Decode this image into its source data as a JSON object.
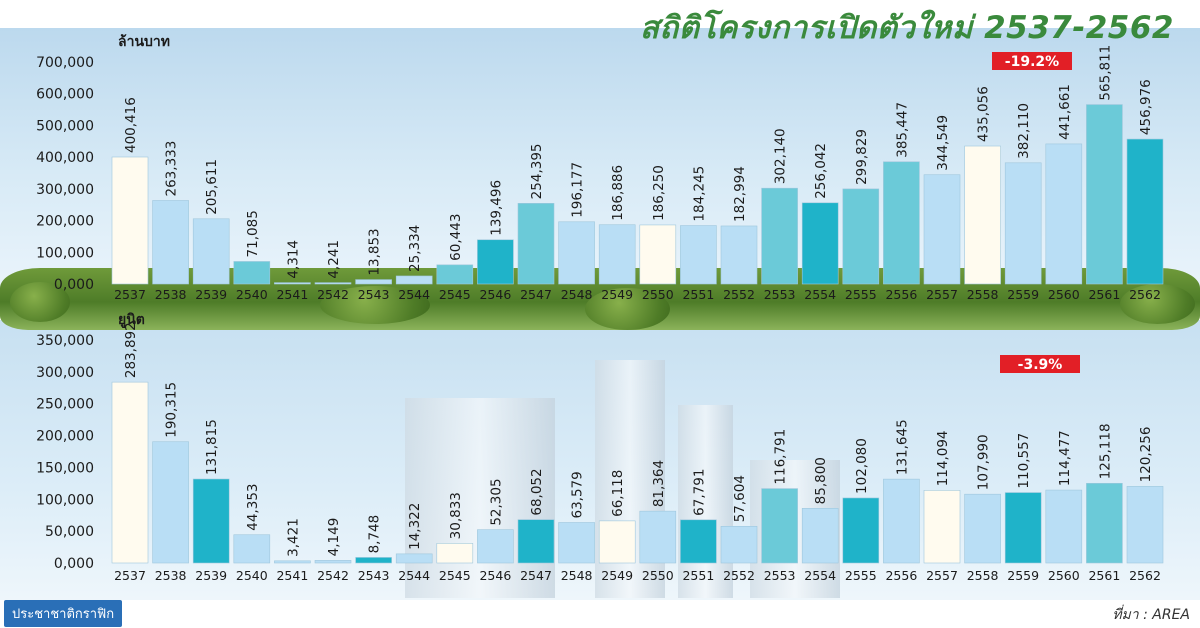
{
  "title": "สถิติโครงการเปิดตัวใหม่ 2537-2562",
  "footer": {
    "left": "ประชาชาติกราฟิก",
    "right": "ที่มา : AREA"
  },
  "colors": {
    "title": "#3a8a3c",
    "badge": "#e21f26",
    "cream": "#fffbef",
    "light_blue": "#b9def5",
    "teal": "#1fb3c9",
    "mid_teal": "#6bcad8"
  },
  "chart_data": [
    {
      "type": "bar",
      "ylabel": "ล้านบาท",
      "ylim": [
        0,
        700000
      ],
      "yticks": [
        "0,000",
        "100,000",
        "200,000",
        "300,000",
        "400,000",
        "500,000",
        "600,000",
        "700,000"
      ],
      "badge": "-19.2%",
      "categories": [
        "2537",
        "2538",
        "2539",
        "2540",
        "2541",
        "2542",
        "2543",
        "2544",
        "2545",
        "2546",
        "2547",
        "2548",
        "2549",
        "2550",
        "2551",
        "2552",
        "2553",
        "2554",
        "2555",
        "2556",
        "2557",
        "2558",
        "2559",
        "2560",
        "2561",
        "2562"
      ],
      "values": [
        400416,
        263333,
        205611,
        71085,
        4314,
        4241,
        13853,
        25334,
        60443,
        139496,
        254395,
        196177,
        186886,
        186250,
        184245,
        182994,
        302140,
        256042,
        299829,
        385447,
        344549,
        435056,
        382110,
        441661,
        565811,
        456976
      ],
      "value_labels": [
        "400,416",
        "263,333",
        "205,611",
        "71,085",
        "4,314",
        "4,241",
        "13,853",
        "25,334",
        "60,443",
        "139,496",
        "254,395",
        "196,177",
        "186,886",
        "186,250",
        "184,245",
        "182,994",
        "302,140",
        "256,042",
        "299,829",
        "385,447",
        "344,549",
        "435,056",
        "382,110",
        "441,661",
        "565,811",
        "456,976"
      ],
      "bar_colors": [
        "#fffbef",
        "#b9def5",
        "#b9def5",
        "#6bcad8",
        "#b9def5",
        "#b9def5",
        "#b9def5",
        "#b9def5",
        "#6bcad8",
        "#1fb3c9",
        "#6bcad8",
        "#b9def5",
        "#b9def5",
        "#fffbef",
        "#b9def5",
        "#b9def5",
        "#6bcad8",
        "#1fb3c9",
        "#6bcad8",
        "#6bcad8",
        "#b9def5",
        "#fffbef",
        "#b9def5",
        "#b9def5",
        "#6bcad8",
        "#1fb3c9"
      ]
    },
    {
      "type": "bar",
      "ylabel": "ยูนิต",
      "ylim": [
        0,
        350000
      ],
      "yticks": [
        "0,000",
        "50,000",
        "100,000",
        "150,000",
        "200,000",
        "250,000",
        "300,000",
        "350,000"
      ],
      "badge": "-3.9%",
      "categories": [
        "2537",
        "2538",
        "2539",
        "2540",
        "2541",
        "2542",
        "2543",
        "2544",
        "2545",
        "2546",
        "2547",
        "2548",
        "2549",
        "2550",
        "2551",
        "2552",
        "2553",
        "2554",
        "2555",
        "2556",
        "2557",
        "2558",
        "2559",
        "2560",
        "2561",
        "2562"
      ],
      "values": [
        283892,
        190315,
        131815,
        44353,
        3421,
        4149,
        8748,
        14322,
        30833,
        52305,
        68052,
        63579,
        66118,
        81364,
        67791,
        57604,
        116791,
        85800,
        102080,
        131645,
        114094,
        107990,
        110557,
        114477,
        125118,
        120256
      ],
      "value_labels": [
        "283,892",
        "190,315",
        "131,815",
        "44,353",
        "3,421",
        "4,149",
        "8,748",
        "14,322",
        "30,833",
        "52,305",
        "68,052",
        "63,579",
        "66,118",
        "81,364",
        "67,791",
        "57,604",
        "116,791",
        "85,800",
        "102,080",
        "131,645",
        "114,094",
        "107,990",
        "110,557",
        "114,477",
        "125,118",
        "120,256"
      ],
      "bar_colors": [
        "#fffbef",
        "#b9def5",
        "#1fb3c9",
        "#b9def5",
        "#b9def5",
        "#b9def5",
        "#1fb3c9",
        "#b9def5",
        "#fffbef",
        "#b9def5",
        "#1fb3c9",
        "#b9def5",
        "#fffbef",
        "#b9def5",
        "#1fb3c9",
        "#b9def5",
        "#6bcad8",
        "#b9def5",
        "#1fb3c9",
        "#b9def5",
        "#fffbef",
        "#b9def5",
        "#1fb3c9",
        "#b9def5",
        "#6bcad8",
        "#b9def5"
      ]
    }
  ]
}
